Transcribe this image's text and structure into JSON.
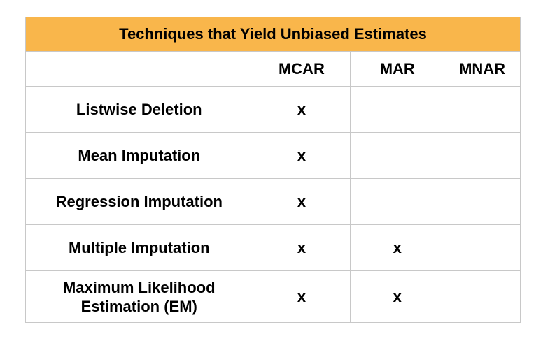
{
  "title": "Techniques that Yield Unbiased Estimates",
  "columns": [
    "",
    "MCAR",
    "MAR",
    "MNAR"
  ],
  "rows": [
    {
      "technique": "Listwise Deletion",
      "mcar": "x",
      "mar": "",
      "mnar": ""
    },
    {
      "technique": "Mean Imputation",
      "mcar": "x",
      "mar": "",
      "mnar": ""
    },
    {
      "technique": "Regression Imputation",
      "mcar": "x",
      "mar": "",
      "mnar": ""
    },
    {
      "technique": "Multiple Imputation",
      "mcar": "x",
      "mar": "x",
      "mnar": ""
    },
    {
      "technique": "Maximum Likelihood Estimation (EM)",
      "technique_line1": "Maximum Likelihood",
      "technique_line2": "Estimation (EM)",
      "mcar": "x",
      "mar": "x",
      "mnar": ""
    }
  ]
}
